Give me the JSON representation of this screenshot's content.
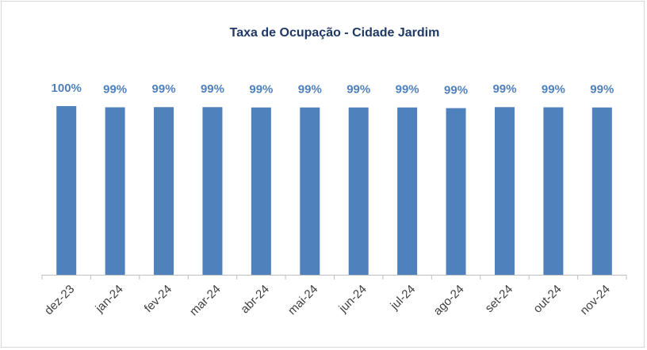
{
  "chart_data": {
    "type": "bar",
    "title": "Taxa de Ocupação - Cidade Jardim",
    "categories": [
      "dez-23",
      "jan-24",
      "fev-24",
      "mar-24",
      "abr-24",
      "mai-24",
      "jun-24",
      "jul-24",
      "ago-24",
      "set-24",
      "out-24",
      "nov-24"
    ],
    "values": [
      100,
      99.3,
      99.4,
      99.4,
      99.2,
      99.2,
      99.2,
      99.2,
      98.8,
      99.4,
      99.3,
      99.2
    ],
    "value_labels": [
      "100%",
      "99%",
      "99%",
      "99%",
      "99%",
      "99%",
      "99%",
      "99%",
      "99%",
      "99%",
      "99%",
      "99%"
    ],
    "color": "#4f81bd",
    "ylim": [
      0,
      100
    ]
  }
}
